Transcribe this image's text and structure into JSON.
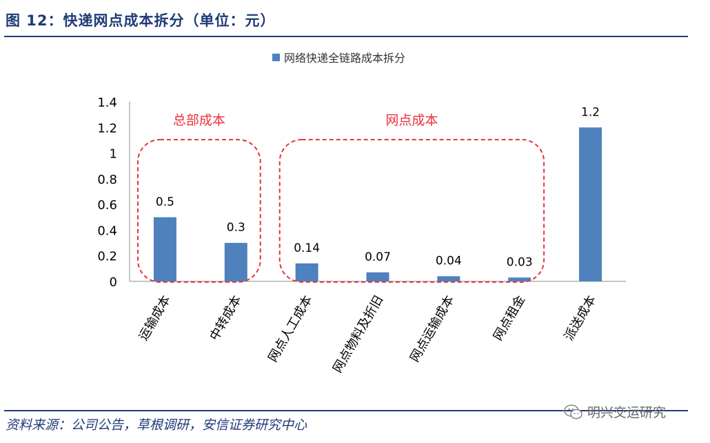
{
  "header": {
    "title": "图 12：快递网点成本拆分（单位：元）"
  },
  "footer": {
    "source": "资料来源：公司公告，草根调研，安信证券研究中心",
    "watermark": "明兴交运研究"
  },
  "colors": {
    "bar": "#4f81bd",
    "annotation": "#e8323c",
    "title": "#1f3a78"
  },
  "chart_data": {
    "type": "bar",
    "legend": "网络快递全链路成本拆分",
    "categories": [
      "运输成本",
      "中转成本",
      "网点人工成本",
      "网点物料及折旧",
      "网点运输成本",
      "网点租金",
      "派送成本"
    ],
    "values": [
      0.5,
      0.3,
      0.14,
      0.07,
      0.04,
      0.03,
      1.2
    ],
    "data_labels": [
      "0.5",
      "0.3",
      "0.14",
      "0.07",
      "0.04",
      "0.03",
      "1.2"
    ],
    "ylim": [
      0,
      1.4
    ],
    "yticks": [
      0,
      0.2,
      0.4,
      0.6,
      0.8,
      1,
      1.2,
      1.4
    ],
    "ytick_labels": [
      "0",
      "0.2",
      "0.4",
      "0.6",
      "0.8",
      "1",
      "1.2",
      "1.4"
    ],
    "annotations": [
      {
        "text": "总部成本",
        "from": 0,
        "to": 1
      },
      {
        "text": "网点成本",
        "from": 2,
        "to": 5
      }
    ]
  }
}
